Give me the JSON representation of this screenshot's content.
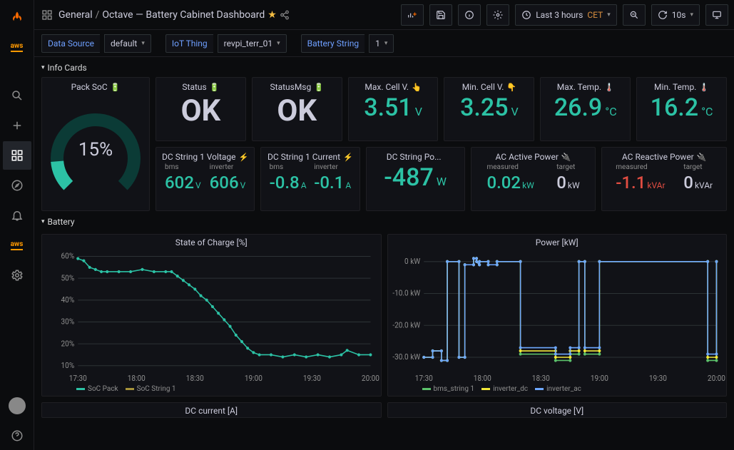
{
  "breadcrumb": {
    "root": "General",
    "title": "Octave — Battery Cabinet Dashboard"
  },
  "topbar": {
    "time_label": "Last 3 hours",
    "tz": "CET",
    "refresh": "10s"
  },
  "filters": {
    "data_source": {
      "label": "Data Source",
      "value": "default"
    },
    "iot_thing": {
      "label": "IoT Thing",
      "value": "revpi_terr_01"
    },
    "battery_string": {
      "label": "Battery String",
      "value": "1"
    }
  },
  "sections": {
    "info": "Info Cards",
    "battery": "Battery"
  },
  "gauge": {
    "title": "Pack SoC",
    "value": 15,
    "display": "15%",
    "color": "#2cc2a5",
    "track": "#0b3b36"
  },
  "cards_top": [
    {
      "title": "Status",
      "icon": "🔋",
      "value": "OK",
      "value_cls": "ok"
    },
    {
      "title": "StatusMsg",
      "icon": "🔋",
      "value": "OK",
      "value_cls": "ok"
    },
    {
      "title": "Max. Cell V.",
      "icon": "👆",
      "value": "3.51",
      "unit": "V",
      "cls": "c-teal"
    },
    {
      "title": "Min. Cell V.",
      "icon": "👇",
      "value": "3.25",
      "unit": "V",
      "cls": "c-teal"
    },
    {
      "title": "Max. Temp.",
      "icon": "🌡️",
      "value": "26.9",
      "unit": "°C",
      "cls": "c-teal"
    },
    {
      "title": "Min. Temp.",
      "icon": "🌡️",
      "value": "16.2",
      "unit": "°C",
      "cls": "c-teal"
    }
  ],
  "cards_bot": [
    {
      "title": "DC String 1 Voltage",
      "icon": "⚡",
      "type": "split",
      "subs": [
        {
          "label": "bms",
          "value": "602",
          "unit": "V",
          "cls": "c-teal"
        },
        {
          "label": "inverter",
          "value": "606",
          "unit": "V",
          "cls": "c-teal"
        }
      ]
    },
    {
      "title": "DC String 1 Current",
      "icon": "⚡",
      "type": "split",
      "subs": [
        {
          "label": "bms",
          "value": "-0.8",
          "unit": "A",
          "cls": "c-teal"
        },
        {
          "label": "inverter",
          "value": "-0.1",
          "unit": "A",
          "cls": "c-teal"
        }
      ]
    },
    {
      "title": "DC String Po...",
      "icon": "",
      "type": "single",
      "value": "-487",
      "unit": "W",
      "cls": "c-teal"
    },
    {
      "title": "AC Active Power",
      "icon": "🔌",
      "type": "split",
      "wide": true,
      "subs": [
        {
          "label": "measured",
          "value": "0.02",
          "unit": "kW",
          "cls": "c-teal"
        },
        {
          "label": "target",
          "value": "0",
          "unit": "kW",
          "cls": "c-white"
        }
      ]
    },
    {
      "title": "AC Reactive Power",
      "icon": "🔌",
      "type": "split",
      "wide": true,
      "subs": [
        {
          "label": "measured",
          "value": "-1.1",
          "unit": "kVAr",
          "cls": "c-red"
        },
        {
          "label": "target",
          "value": "0",
          "unit": "kVAr",
          "cls": "c-white"
        }
      ]
    }
  ],
  "soc_chart": {
    "title": "State of Charge [%]",
    "ylim": [
      8,
      62
    ],
    "yticks": [
      10,
      20,
      30,
      40,
      50,
      60
    ],
    "xticks": [
      "17:30",
      "18:00",
      "18:30",
      "19:00",
      "19:30",
      "20:00"
    ],
    "series": [
      {
        "name": "SoC Pack",
        "color": "#2cc2a5",
        "points": [
          [
            0,
            59
          ],
          [
            2,
            58
          ],
          [
            4,
            55
          ],
          [
            6,
            54
          ],
          [
            8,
            53
          ],
          [
            10,
            53
          ],
          [
            14,
            53
          ],
          [
            18,
            53
          ],
          [
            22,
            54
          ],
          [
            26,
            53
          ],
          [
            30,
            53
          ],
          [
            32,
            53
          ],
          [
            34,
            51
          ],
          [
            36,
            49
          ],
          [
            38,
            47
          ],
          [
            40,
            45
          ],
          [
            42,
            42
          ],
          [
            44,
            40
          ],
          [
            46,
            37
          ],
          [
            48,
            34
          ],
          [
            50,
            31
          ],
          [
            52,
            28
          ],
          [
            54,
            24
          ],
          [
            56,
            21
          ],
          [
            58,
            18
          ],
          [
            60,
            16
          ],
          [
            62,
            15
          ],
          [
            66,
            15
          ],
          [
            70,
            14
          ],
          [
            74,
            15
          ],
          [
            78,
            14
          ],
          [
            82,
            15
          ],
          [
            86,
            14
          ],
          [
            90,
            15
          ],
          [
            92,
            17
          ],
          [
            96,
            15
          ],
          [
            100,
            15
          ]
        ]
      },
      {
        "name": "SoC String 1",
        "color": "#a6933a",
        "points": []
      }
    ],
    "bg": "#111217",
    "grid": "#2c3235"
  },
  "power_chart": {
    "title": "Power [kW]",
    "ylim": [
      -34,
      3
    ],
    "yticks": [
      0,
      -10,
      -20,
      -30
    ],
    "yunit": "kW",
    "xticks": [
      "17:30",
      "18:00",
      "18:30",
      "19:00",
      "19:30",
      "20:00"
    ],
    "series": [
      {
        "name": "bms_string 1",
        "color": "#5cc26b",
        "points": [
          [
            0,
            -30
          ],
          [
            3,
            -30
          ],
          [
            3,
            -28
          ],
          [
            6,
            -28
          ],
          [
            6,
            -31
          ],
          [
            8,
            -31
          ],
          [
            8,
            0
          ],
          [
            12,
            0
          ],
          [
            12,
            -30
          ],
          [
            14,
            -30
          ],
          [
            14,
            -1
          ],
          [
            17,
            -1
          ],
          [
            17,
            1
          ],
          [
            18,
            1
          ],
          [
            18,
            0
          ],
          [
            19,
            -1
          ],
          [
            19,
            0
          ],
          [
            22,
            0
          ],
          [
            22,
            -1
          ],
          [
            25,
            -1
          ],
          [
            25,
            0
          ],
          [
            33,
            0
          ],
          [
            33,
            -29
          ],
          [
            45,
            -29
          ],
          [
            45,
            -31
          ],
          [
            50,
            -31
          ],
          [
            50,
            -29
          ],
          [
            53,
            -29
          ],
          [
            53,
            0
          ],
          [
            55,
            0
          ],
          [
            55,
            -29
          ],
          [
            60,
            -29
          ],
          [
            60,
            0
          ],
          [
            97,
            0
          ],
          [
            97,
            -31
          ],
          [
            100,
            -31
          ],
          [
            100,
            0
          ]
        ]
      },
      {
        "name": "inverter_dc",
        "color": "#f2e838",
        "points": [
          [
            0,
            -30
          ],
          [
            3,
            -30
          ],
          [
            3,
            -28
          ],
          [
            6,
            -28
          ],
          [
            6,
            -31
          ],
          [
            8,
            -31
          ],
          [
            8,
            0
          ],
          [
            12,
            0
          ],
          [
            12,
            -30
          ],
          [
            14,
            -30
          ],
          [
            14,
            -1
          ],
          [
            17,
            -1
          ],
          [
            17,
            1
          ],
          [
            18,
            1
          ],
          [
            18,
            0
          ],
          [
            19,
            -1
          ],
          [
            19,
            0
          ],
          [
            22,
            0
          ],
          [
            22,
            -1
          ],
          [
            25,
            -1
          ],
          [
            25,
            0
          ],
          [
            33,
            0
          ],
          [
            33,
            -28
          ],
          [
            45,
            -28
          ],
          [
            45,
            -30
          ],
          [
            50,
            -30
          ],
          [
            50,
            -28
          ],
          [
            53,
            -28
          ],
          [
            53,
            0
          ],
          [
            55,
            0
          ],
          [
            55,
            -28
          ],
          [
            60,
            -28
          ],
          [
            60,
            0
          ],
          [
            97,
            0
          ],
          [
            97,
            -30
          ],
          [
            100,
            -30
          ],
          [
            100,
            0
          ]
        ]
      },
      {
        "name": "inverter_ac",
        "color": "#6ea8ff",
        "points": [
          [
            0,
            -30
          ],
          [
            3,
            -30
          ],
          [
            3,
            -28
          ],
          [
            6,
            -28
          ],
          [
            6,
            -31
          ],
          [
            8,
            -31
          ],
          [
            8,
            0
          ],
          [
            12,
            0
          ],
          [
            12,
            -30
          ],
          [
            14,
            -30
          ],
          [
            14,
            -1
          ],
          [
            17,
            -1
          ],
          [
            17,
            1
          ],
          [
            18,
            1
          ],
          [
            18,
            0
          ],
          [
            19,
            -1
          ],
          [
            19,
            0
          ],
          [
            22,
            0
          ],
          [
            22,
            -1
          ],
          [
            25,
            -1
          ],
          [
            25,
            0
          ],
          [
            33,
            0
          ],
          [
            33,
            -27
          ],
          [
            45,
            -27
          ],
          [
            45,
            -29
          ],
          [
            50,
            -29
          ],
          [
            50,
            -27
          ],
          [
            53,
            -27
          ],
          [
            53,
            0
          ],
          [
            55,
            0
          ],
          [
            55,
            -27
          ],
          [
            60,
            -27
          ],
          [
            60,
            0
          ],
          [
            97,
            0
          ],
          [
            97,
            -29
          ],
          [
            100,
            -29
          ],
          [
            100,
            0
          ]
        ]
      }
    ],
    "bg": "#111217",
    "grid": "#2c3235"
  },
  "next_panels": [
    {
      "title": "DC current [A]"
    },
    {
      "title": "DC voltage [V]"
    }
  ]
}
